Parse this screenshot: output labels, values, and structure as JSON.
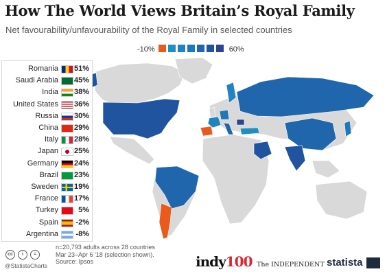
{
  "title": "How The World Views Britain’s Royal Family",
  "subtitle": "Net favourability/unfavourability of the Royal Family in selected countries",
  "legend": {
    "min_label": "-10%",
    "max_label": "60%",
    "colors": [
      "#ea5a1a",
      "#1f8fc2",
      "#1f84bf",
      "#1c78b8",
      "#1f66ad",
      "#21549f",
      "#2a4690"
    ]
  },
  "chart_data": {
    "type": "table",
    "categories": [
      "Romania",
      "Saudi Arabia",
      "India",
      "United States",
      "Russia",
      "China",
      "Italy",
      "Japan",
      "Germany",
      "Brazil",
      "Sweden",
      "France",
      "Turkey",
      "Spain",
      "Argentina"
    ],
    "values": [
      51,
      45,
      38,
      36,
      30,
      29,
      28,
      25,
      24,
      23,
      19,
      17,
      5,
      -2,
      -8
    ],
    "labels": [
      "51%",
      "45%",
      "38%",
      "36%",
      "30%",
      "29%",
      "28%",
      "25%",
      "24%",
      "23%",
      "19%",
      "17%",
      "5%",
      "-2%",
      "-8%"
    ],
    "flags": [
      "romania-flag",
      "saudi-arabia-flag",
      "india-flag",
      "united-states-flag",
      "russia-flag",
      "china-flag",
      "italy-flag",
      "japan-flag",
      "germany-flag",
      "brazil-flag",
      "sweden-flag",
      "france-flag",
      "turkey-flag",
      "spain-flag",
      "argentina-flag"
    ],
    "color_scale": {
      "min": -10,
      "max": 60
    }
  },
  "footer": {
    "note_line1": "n=20,793 adults across 28 countries",
    "note_line2": "Mar 23–Apr 6 '18 (selection shown).",
    "source": "Source: Ipsos",
    "handle": "@StatistaCharts",
    "indy_prefix": "indy",
    "indy_suffix": "100",
    "independent": "The INDEPENDENT",
    "statista": "statista"
  },
  "colors": {
    "positive": "#1f6fb3",
    "negative": "#ea5a1a",
    "land": "#d9d9d9"
  }
}
